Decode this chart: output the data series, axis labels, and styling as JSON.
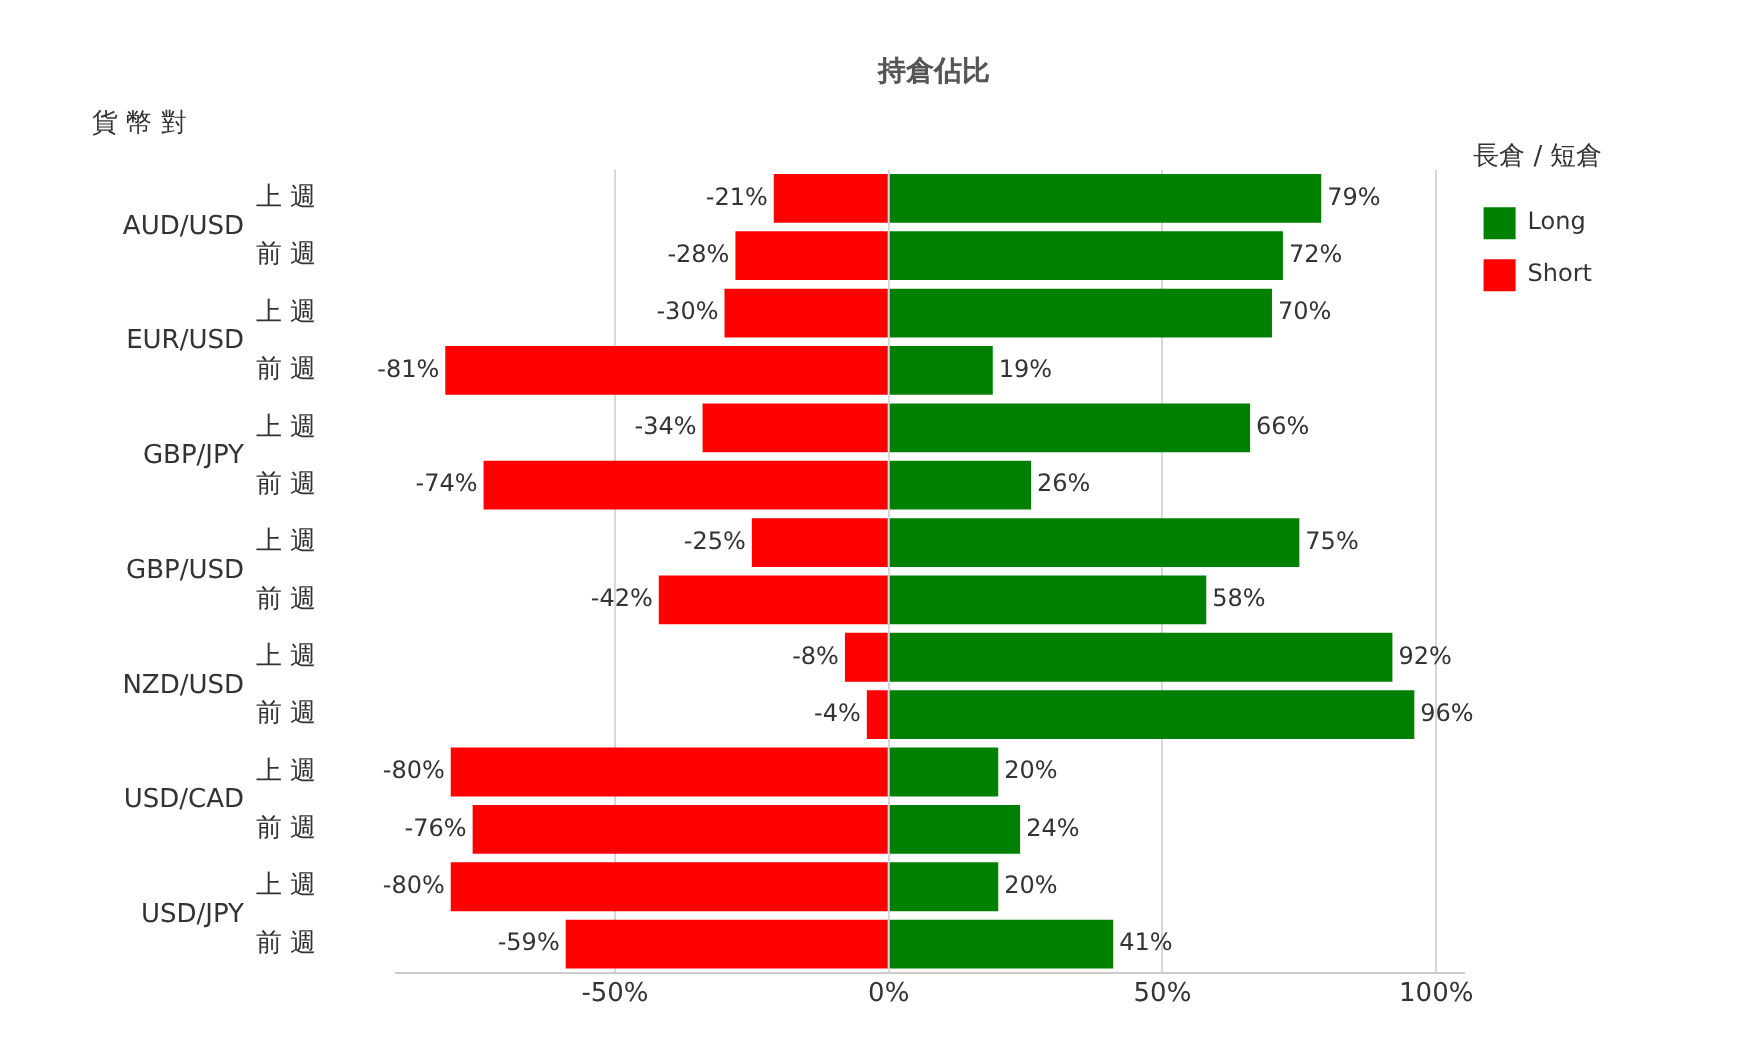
{
  "chart_data": {
    "type": "bar",
    "title": "持倉佔比",
    "ylabel": "貨 幣 對",
    "legend_title": "長倉 / 短倉",
    "orientation": "horizontal",
    "stacked": true,
    "categories": [
      "上 週",
      "前 週",
      "上 週",
      "前 週",
      "上 週",
      "前 週",
      "上 週",
      "前 週",
      "上 週",
      "前 週",
      "上 週",
      "前 週",
      "上 週",
      "前 週"
    ],
    "annotations": [
      "AUD/USD",
      "EUR/USD",
      "GBP/JPY",
      "GBP/USD",
      "NZD/USD",
      "USD/CAD",
      "USD/JPY"
    ],
    "series": [
      {
        "name": "Long",
        "color": "#008000",
        "values": [
          79,
          72,
          70,
          19,
          66,
          26,
          75,
          58,
          92,
          96,
          20,
          24,
          20,
          41
        ],
        "value_labels": [
          "79%",
          "72%",
          "70%",
          "19%",
          "66%",
          "26%",
          "75%",
          "58%",
          "92%",
          "96%",
          "20%",
          "24%",
          "20%",
          "41%"
        ]
      },
      {
        "name": "Short",
        "color": "#ff0000",
        "values": [
          -21,
          -28,
          -30,
          -81,
          -34,
          -74,
          -25,
          -42,
          -8,
          -4,
          -80,
          -76,
          -80,
          -59
        ],
        "value_labels": [
          "-21%",
          "-28%",
          "-30%",
          "-81%",
          "-34%",
          "-74%",
          "-25%",
          "-42%",
          "-8%",
          "-4%",
          "-80%",
          "-76%",
          "-80%",
          "-59%"
        ]
      }
    ],
    "xlim": [
      -90,
      105
    ],
    "xticks": [
      {
        "value": -50,
        "label": "-50%"
      },
      {
        "value": 0,
        "label": "0%"
      },
      {
        "value": 50,
        "label": "50%"
      },
      {
        "value": 100,
        "label": "100%"
      }
    ],
    "grid": "x",
    "legend": "top right"
  }
}
